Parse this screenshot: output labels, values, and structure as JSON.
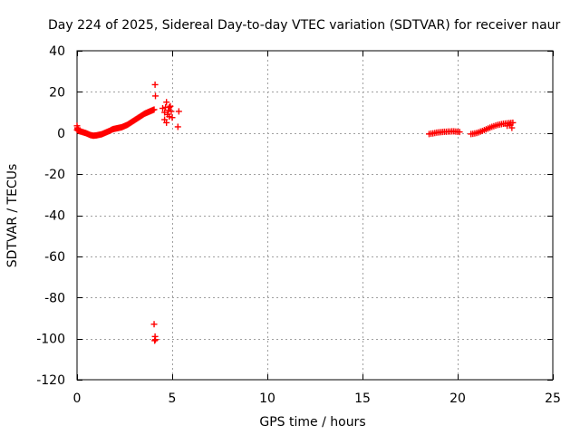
{
  "chart_data": {
    "type": "scatter",
    "title": "Day 224 of 2025, Sidereal Day-to-day VTEC variation (SDTVAR) for receiver naur",
    "xlabel": "GPS time / hours",
    "ylabel": "SDTVAR / TECUs",
    "xlim": [
      0,
      25
    ],
    "ylim": [
      -120,
      40
    ],
    "xticks": [
      0,
      5,
      10,
      15,
      20,
      25
    ],
    "yticks": [
      -120,
      -100,
      -80,
      -60,
      -40,
      -20,
      0,
      20,
      40
    ],
    "xtick_labels": [
      "0",
      "5",
      "10",
      "15",
      "20",
      "25"
    ],
    "ytick_labels": [
      "-120",
      "-100",
      "-80",
      "-60",
      "-40",
      "-20",
      "0",
      "20",
      "40"
    ],
    "grid": true,
    "marker": "+",
    "series": [
      {
        "name": "SDTVAR",
        "color": "#ff0000",
        "x": [
          0.0,
          0.05,
          0.1,
          0.15,
          0.2,
          0.25,
          0.3,
          0.35,
          0.4,
          0.45,
          0.5,
          0.55,
          0.6,
          0.65,
          0.7,
          0.75,
          0.8,
          0.85,
          0.9,
          0.95,
          1.0,
          1.05,
          1.1,
          1.15,
          1.2,
          1.25,
          1.3,
          1.35,
          1.4,
          1.45,
          1.5,
          1.55,
          1.6,
          1.65,
          1.7,
          1.75,
          1.8,
          1.85,
          1.9,
          1.95,
          2.0,
          2.05,
          2.1,
          2.15,
          2.2,
          2.25,
          2.3,
          2.35,
          2.4,
          2.45,
          2.5,
          2.55,
          2.6,
          2.65,
          2.7,
          2.75,
          2.8,
          2.85,
          2.9,
          2.95,
          3.0,
          3.05,
          3.1,
          3.15,
          3.2,
          3.25,
          3.3,
          3.35,
          3.4,
          3.45,
          3.5,
          3.55,
          3.6,
          3.65,
          3.7,
          3.75,
          3.8,
          3.85,
          3.9,
          3.95,
          4.0,
          4.05,
          0.0,
          0.02,
          0.04,
          0.06,
          4.1,
          4.12,
          4.05,
          4.1,
          4.08,
          4.12,
          4.5,
          4.6,
          4.6,
          4.65,
          4.7,
          4.75,
          4.8,
          4.85,
          4.9,
          4.95,
          5.0,
          4.7,
          4.85,
          5.3,
          5.35,
          18.5,
          18.6,
          18.7,
          18.8,
          18.9,
          19.0,
          19.1,
          19.2,
          19.3,
          19.4,
          19.5,
          19.6,
          19.7,
          19.8,
          19.9,
          20.0,
          20.1,
          20.7,
          20.8,
          20.9,
          21.0,
          21.1,
          21.2,
          21.3,
          21.4,
          21.5,
          21.6,
          21.7,
          21.8,
          21.9,
          22.0,
          22.1,
          22.2,
          22.3,
          22.4,
          22.5,
          22.6,
          22.7,
          22.8,
          22.9,
          22.6,
          22.75,
          22.85
        ],
        "y": [
          1.5,
          1.2,
          1.0,
          0.8,
          0.7,
          0.6,
          0.4,
          0.3,
          0.1,
          0.0,
          -0.2,
          -0.4,
          -0.6,
          -0.8,
          -1.0,
          -1.1,
          -1.2,
          -1.3,
          -1.3,
          -1.2,
          -1.2,
          -1.1,
          -1.0,
          -0.9,
          -0.8,
          -0.7,
          -0.6,
          -0.4,
          -0.2,
          0.0,
          0.2,
          0.4,
          0.6,
          0.8,
          1.0,
          1.2,
          1.5,
          1.7,
          1.9,
          2.0,
          2.1,
          2.2,
          2.3,
          2.4,
          2.5,
          2.6,
          2.7,
          2.8,
          3.0,
          3.2,
          3.4,
          3.6,
          3.8,
          4.0,
          4.3,
          4.6,
          4.9,
          5.2,
          5.5,
          5.8,
          6.1,
          6.4,
          6.7,
          7.0,
          7.3,
          7.6,
          7.9,
          8.2,
          8.5,
          8.8,
          9.1,
          9.4,
          9.6,
          9.8,
          10.0,
          10.2,
          10.4,
          10.6,
          10.8,
          11.0,
          11.2,
          11.4,
          3.5,
          2.5,
          2.0,
          1.5,
          23.5,
          18.0,
          -93.0,
          -99.0,
          -101.0,
          -100.5,
          12.0,
          10.0,
          6.5,
          12.5,
          15.0,
          9.0,
          11.0,
          8.0,
          13.0,
          10.5,
          7.5,
          5.0,
          12.5,
          3.0,
          10.5,
          -0.5,
          -0.3,
          -0.2,
          0.0,
          0.2,
          0.3,
          0.4,
          0.5,
          0.6,
          0.6,
          0.7,
          0.7,
          0.8,
          0.8,
          0.7,
          0.6,
          0.5,
          -0.5,
          -0.4,
          -0.2,
          0.0,
          0.3,
          0.7,
          1.0,
          1.4,
          1.8,
          2.2,
          2.6,
          3.0,
          3.3,
          3.6,
          3.9,
          4.1,
          4.3,
          4.5,
          4.6,
          4.7,
          4.8,
          4.9,
          5.0,
          3.5,
          4.0,
          2.5
        ]
      }
    ]
  }
}
